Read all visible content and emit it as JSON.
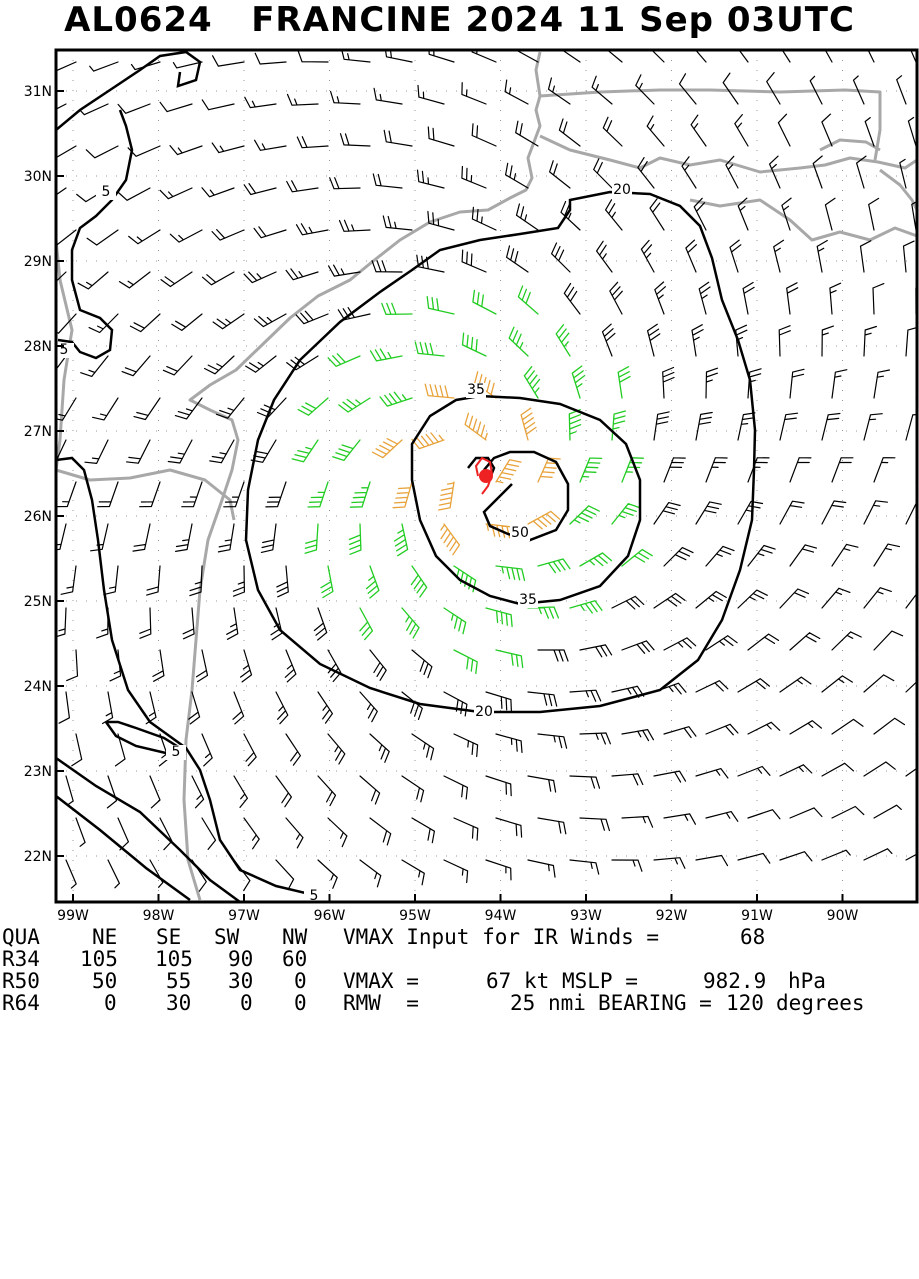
{
  "title": "AL0624   FRANCINE 2024 11 Sep 03UTC",
  "map": {
    "lat_labels": [
      "31N",
      "30N",
      "29N",
      "28N",
      "27N",
      "26N",
      "25N",
      "24N",
      "23N",
      "22N"
    ],
    "lon_labels": [
      "99W",
      "98W",
      "97W",
      "96W",
      "95W",
      "94W",
      "93W",
      "92W",
      "91W",
      "90W"
    ],
    "contour_labels": [
      "5",
      "5",
      "5",
      "5",
      "20",
      "20",
      "35",
      "35",
      "50"
    ],
    "storm_center": {
      "lat": 26.45,
      "lon": -94.3
    },
    "colors": {
      "frame": "#000000",
      "coast": "#a8a8a8",
      "contour": "#000000",
      "barb_light": "#000000",
      "barb_34": "#22cc22",
      "barb_50": "#e8a23a",
      "barb_64": "#e06a20",
      "center": "#ee2222",
      "grid": "#999999"
    }
  },
  "table": {
    "header": [
      "QUA",
      "NE",
      "SE",
      "SW",
      "NW"
    ],
    "rows": [
      {
        "label": "R34",
        "values": [
          "105",
          "105",
          "90",
          "60"
        ]
      },
      {
        "label": "R50",
        "values": [
          "50",
          "55",
          "30",
          "0"
        ]
      },
      {
        "label": "R64",
        "values": [
          "0",
          "30",
          "0",
          "0"
        ]
      }
    ],
    "vmax_input_text": "VMAX Input for IR Winds =",
    "vmax_input_value": "68",
    "vmax_text": "VMAX =",
    "vmax_value": "67",
    "vmax_unit": "kt",
    "mslp_text": "MSLP =",
    "mslp_value": "982.9",
    "mslp_unit": "hPa",
    "rmw_text": "RMW  =",
    "rmw_value": "25",
    "rmw_unit": "nmi",
    "bearing_text": "BEARING =",
    "bearing_value": "120",
    "bearing_unit": "degrees"
  }
}
